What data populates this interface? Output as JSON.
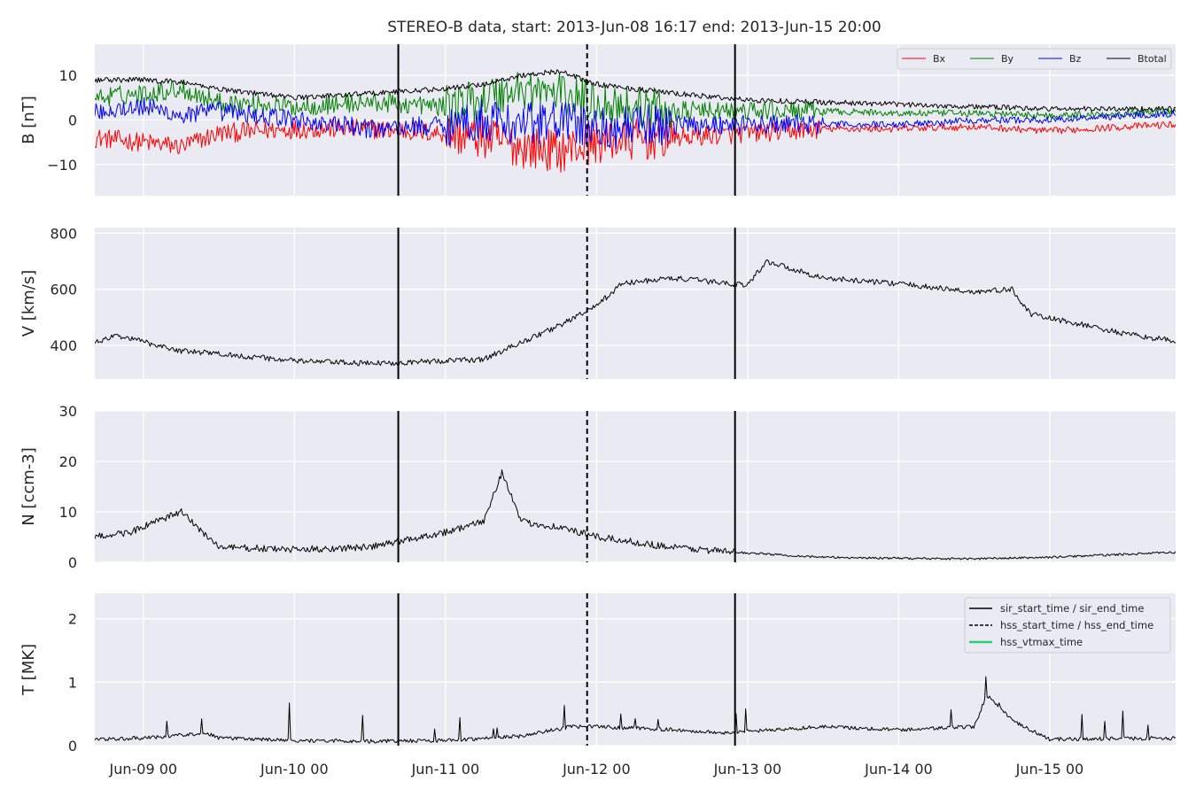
{
  "title": "STEREO-B data, start: 2013-Jun-08 16:17  end: 2013-Jun-15 20:00",
  "colors": {
    "panel_bg": "#eaeaf2",
    "grid": "#ffffff",
    "bx": "#ff0000",
    "by": "#008000",
    "bz": "#0000ff",
    "btotal": "#000000",
    "series": "#000000",
    "hss_vtmax": "#2ecc71"
  },
  "x_tick_labels": [
    "Jun-09 00",
    "Jun-10 00",
    "Jun-11 00",
    "Jun-12 00",
    "Jun-13 00",
    "Jun-14 00",
    "Jun-15 00"
  ],
  "legend_b": [
    "Bx",
    "By",
    "Bz",
    "Btotal"
  ],
  "legend_events": [
    "sir_start_time / sir_end_time",
    "hss_start_time / hss_end_time",
    "hss_vtmax_time"
  ],
  "chart_data": [
    {
      "type": "line",
      "ylabel": "B [nT]",
      "xlim": [
        "2013-06-08 16:17",
        "2013-06-15 20:00"
      ],
      "ylim": [
        -17,
        17
      ],
      "yticks": [
        -10,
        0,
        10
      ],
      "ytick_labels": [
        "−10",
        "0",
        "10"
      ],
      "grid": true,
      "legend": "top-right",
      "events": {
        "sir_start_time": "2013-06-10 16:30",
        "hss_start_time": "2013-06-11 22:30",
        "sir_end_time": "2013-06-12 22:00"
      },
      "series": [
        {
          "name": "Bx",
          "x": [
            "2013-06-08 16:17",
            "2013-06-09 00:00",
            "2013-06-09 06:00",
            "2013-06-09 12:00",
            "2013-06-10 00:00",
            "2013-06-10 12:00",
            "2013-06-11 00:00",
            "2013-06-11 06:00",
            "2013-06-11 12:00",
            "2013-06-11 18:00",
            "2013-06-12 00:00",
            "2013-06-12 12:00",
            "2013-06-13 00:00",
            "2013-06-13 12:00",
            "2013-06-14 00:00",
            "2013-06-14 12:00",
            "2013-06-15 00:00",
            "2013-06-15 12:00",
            "2013-06-15 20:00"
          ],
          "values": [
            -4,
            -5,
            -6,
            -3,
            -2,
            -2,
            -3,
            -4,
            -6,
            -7,
            -5,
            -4,
            -3,
            -2,
            -2,
            -1.5,
            -2.5,
            -1.5,
            -1
          ]
        },
        {
          "name": "By",
          "x": [
            "2013-06-08 16:17",
            "2013-06-09 00:00",
            "2013-06-09 06:00",
            "2013-06-09 12:00",
            "2013-06-10 00:00",
            "2013-06-10 12:00",
            "2013-06-11 00:00",
            "2013-06-11 06:00",
            "2013-06-11 12:00",
            "2013-06-11 18:00",
            "2013-06-12 00:00",
            "2013-06-12 12:00",
            "2013-06-13 00:00",
            "2013-06-13 12:00",
            "2013-06-14 00:00",
            "2013-06-14 12:00",
            "2013-06-15 00:00",
            "2013-06-15 12:00",
            "2013-06-15 20:00"
          ],
          "values": [
            5,
            6,
            7,
            4,
            3,
            4,
            3,
            5,
            7,
            6,
            4,
            2,
            2,
            2,
            1.5,
            1.5,
            1,
            1.5,
            2
          ]
        },
        {
          "name": "Bz",
          "x": [
            "2013-06-08 16:17",
            "2013-06-09 00:00",
            "2013-06-09 06:00",
            "2013-06-09 12:00",
            "2013-06-10 00:00",
            "2013-06-10 12:00",
            "2013-06-11 00:00",
            "2013-06-11 06:00",
            "2013-06-11 12:00",
            "2013-06-11 18:00",
            "2013-06-12 00:00",
            "2013-06-12 12:00",
            "2013-06-13 00:00",
            "2013-06-13 12:00",
            "2013-06-14 00:00",
            "2013-06-14 12:00",
            "2013-06-15 00:00",
            "2013-06-15 12:00",
            "2013-06-15 20:00"
          ],
          "values": [
            2,
            3,
            1,
            2,
            0,
            -2,
            -1,
            0,
            -1,
            0,
            -2,
            -1,
            -1,
            -1,
            -1,
            0,
            0,
            1,
            1.5
          ]
        },
        {
          "name": "Btotal",
          "x": [
            "2013-06-08 16:17",
            "2013-06-09 00:00",
            "2013-06-09 06:00",
            "2013-06-09 12:00",
            "2013-06-10 00:00",
            "2013-06-10 12:00",
            "2013-06-11 00:00",
            "2013-06-11 06:00",
            "2013-06-11 12:00",
            "2013-06-11 18:00",
            "2013-06-12 00:00",
            "2013-06-12 12:00",
            "2013-06-13 00:00",
            "2013-06-13 12:00",
            "2013-06-14 00:00",
            "2013-06-14 12:00",
            "2013-06-15 00:00",
            "2013-06-15 12:00",
            "2013-06-15 20:00"
          ],
          "values": [
            9,
            9,
            8.5,
            7,
            5,
            6,
            7,
            8,
            10,
            11,
            8,
            6,
            4.5,
            4,
            3.5,
            3,
            2.5,
            2.5,
            2.5
          ]
        }
      ]
    },
    {
      "type": "line",
      "ylabel": "V [km/s]",
      "xlim": [
        "2013-06-08 16:17",
        "2013-06-15 20:00"
      ],
      "ylim": [
        280,
        820
      ],
      "yticks": [
        400,
        600,
        800
      ],
      "ytick_labels": [
        "400",
        "600",
        "800"
      ],
      "grid": true,
      "series": [
        {
          "x": [
            "2013-06-08 16:17",
            "2013-06-08 20:00",
            "2013-06-09 06:00",
            "2013-06-09 12:00",
            "2013-06-10 00:00",
            "2013-06-10 12:00",
            "2013-06-11 00:00",
            "2013-06-11 06:00",
            "2013-06-11 12:00",
            "2013-06-11 18:00",
            "2013-06-12 00:00",
            "2013-06-12 04:00",
            "2013-06-12 12:00",
            "2013-06-13 00:00",
            "2013-06-13 03:00",
            "2013-06-13 12:00",
            "2013-06-14 00:00",
            "2013-06-14 12:00",
            "2013-06-14 18:00",
            "2013-06-14 21:00",
            "2013-06-15 06:00",
            "2013-06-15 12:00",
            "2013-06-15 20:00"
          ],
          "values": [
            410,
            435,
            380,
            370,
            345,
            335,
            345,
            350,
            410,
            470,
            540,
            620,
            640,
            615,
            700,
            640,
            620,
            590,
            600,
            510,
            470,
            440,
            415
          ]
        }
      ]
    },
    {
      "type": "line",
      "ylabel": "N [ccm-3]",
      "xlim": [
        "2013-06-08 16:17",
        "2013-06-15 20:00"
      ],
      "ylim": [
        0,
        30
      ],
      "yticks": [
        0,
        10,
        20,
        30
      ],
      "ytick_labels": [
        "0",
        "10",
        "20",
        "30"
      ],
      "grid": true,
      "series": [
        {
          "x": [
            "2013-06-08 16:17",
            "2013-06-08 22:00",
            "2013-06-09 06:00",
            "2013-06-09 12:00",
            "2013-06-10 00:00",
            "2013-06-10 12:00",
            "2013-06-11 00:00",
            "2013-06-11 06:00",
            "2013-06-11 09:00",
            "2013-06-11 12:00",
            "2013-06-11 18:00",
            "2013-06-12 00:00",
            "2013-06-12 12:00",
            "2013-06-12 22:00",
            "2013-06-13 12:00",
            "2013-06-14 00:00",
            "2013-06-14 12:00",
            "2013-06-15 00:00",
            "2013-06-15 20:00"
          ],
          "values": [
            5,
            6,
            10,
            3,
            2.5,
            3,
            6,
            8,
            18,
            8,
            7,
            5,
            3,
            2,
            1,
            0.8,
            0.7,
            1,
            2
          ]
        }
      ]
    },
    {
      "type": "line",
      "ylabel": "T [MK]",
      "xlim": [
        "2013-06-08 16:17",
        "2013-06-15 20:00"
      ],
      "ylim": [
        0,
        2.4
      ],
      "yticks": [
        0,
        1,
        2
      ],
      "ytick_labels": [
        "0",
        "1",
        "2"
      ],
      "grid": true,
      "legend": "top-right",
      "series": [
        {
          "x": [
            "2013-06-08 16:17",
            "2013-06-09 00:00",
            "2013-06-09 10:00",
            "2013-06-09 12:00",
            "2013-06-10 00:00",
            "2013-06-10 12:00",
            "2013-06-11 00:00",
            "2013-06-11 12:00",
            "2013-06-11 20:00",
            "2013-06-12 00:00",
            "2013-06-12 12:00",
            "2013-06-12 20:00",
            "2013-06-13 00:00",
            "2013-06-13 12:00",
            "2013-06-14 00:00",
            "2013-06-14 12:00",
            "2013-06-14 14:00",
            "2013-06-14 18:00",
            "2013-06-15 00:00",
            "2013-06-15 20:00"
          ],
          "values": [
            0.1,
            0.12,
            0.2,
            0.12,
            0.08,
            0.07,
            0.08,
            0.15,
            0.3,
            0.3,
            0.25,
            0.2,
            0.22,
            0.3,
            0.25,
            0.3,
            0.8,
            0.4,
            0.1,
            0.12
          ]
        }
      ]
    }
  ]
}
